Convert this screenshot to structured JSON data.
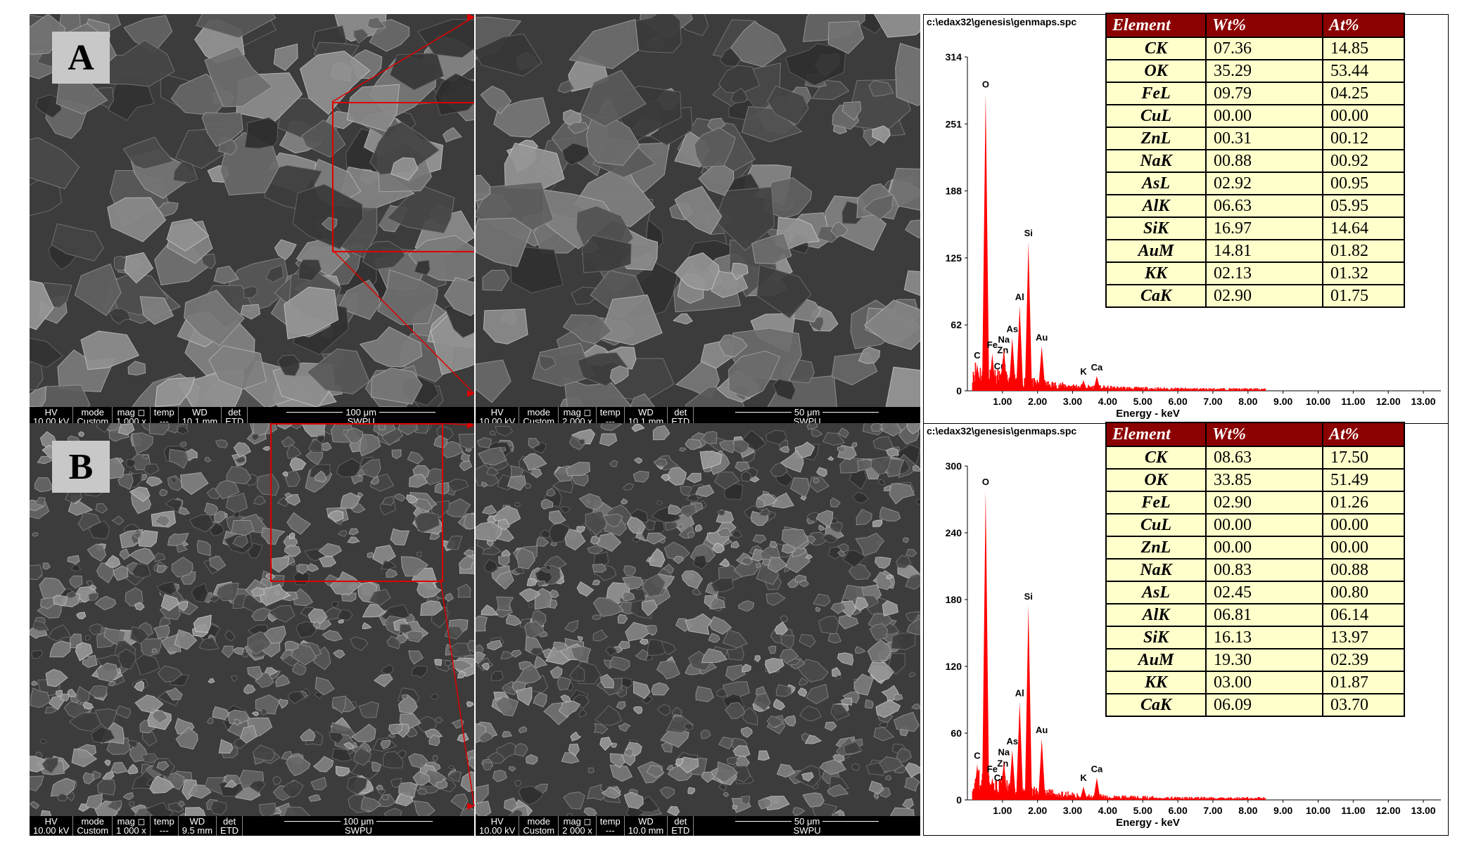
{
  "panels": [
    {
      "letter": "A",
      "sem_left": {
        "hv": "HV",
        "hv_val": "10.00 kV",
        "mode": "mode",
        "mode_val": "Custom",
        "mag": "mag ◻",
        "mag_val": "1 000 x",
        "temp": "temp",
        "temp_val": "---",
        "wd": "WD",
        "wd_val": "10.1 mm",
        "det": "det",
        "det_val": "ETD",
        "scale": "100 μm",
        "org": "SWPU"
      },
      "sem_right": {
        "hv": "HV",
        "hv_val": "10.00 kV",
        "mode": "mode",
        "mode_val": "Custom",
        "mag": "mag ◻",
        "mag_val": "2 000 x",
        "temp": "temp",
        "temp_val": "---",
        "wd": "WD",
        "wd_val": "10.1 mm",
        "det": "det",
        "det_val": "ETD",
        "scale": "50 μm",
        "org": "SWPU"
      },
      "path": "c:\\edax32\\genesis\\genmaps.spc",
      "table": {
        "headers": [
          "Element",
          "Wt%",
          "At%"
        ],
        "rows": [
          [
            "CK",
            "07.36",
            "14.85"
          ],
          [
            "OK",
            "35.29",
            "53.44"
          ],
          [
            "FeL",
            "09.79",
            "04.25"
          ],
          [
            "CuL",
            "00.00",
            "00.00"
          ],
          [
            "ZnL",
            "00.31",
            "00.12"
          ],
          [
            "NaK",
            "00.88",
            "00.92"
          ],
          [
            "AsL",
            "02.92",
            "00.95"
          ],
          [
            "AlK",
            "06.63",
            "05.95"
          ],
          [
            "SiK",
            "16.97",
            "14.64"
          ],
          [
            "AuM",
            "14.81",
            "01.82"
          ],
          [
            "KK",
            "02.13",
            "01.32"
          ],
          [
            "CaK",
            "02.90",
            "01.75"
          ]
        ]
      }
    },
    {
      "letter": "B",
      "sem_left": {
        "hv": "HV",
        "hv_val": "10.00 kV",
        "mode": "mode",
        "mode_val": "Custom",
        "mag": "mag ◻",
        "mag_val": "1 000 x",
        "temp": "temp",
        "temp_val": "---",
        "wd": "WD",
        "wd_val": "9.5 mm",
        "det": "det",
        "det_val": "ETD",
        "scale": "100 μm",
        "org": "SWPU"
      },
      "sem_right": {
        "hv": "HV",
        "hv_val": "10.00 kV",
        "mode": "mode",
        "mode_val": "Custom",
        "mag": "mag ◻",
        "mag_val": "2 000 x",
        "temp": "temp",
        "temp_val": "---",
        "wd": "WD",
        "wd_val": "10.0 mm",
        "det": "det",
        "det_val": "ETD",
        "scale": "50 μm",
        "org": "SWPU"
      },
      "path": "c:\\edax32\\genesis\\genmaps.spc",
      "table": {
        "headers": [
          "Element",
          "Wt%",
          "At%"
        ],
        "rows": [
          [
            "CK",
            "08.63",
            "17.50"
          ],
          [
            "OK",
            "33.85",
            "51.49"
          ],
          [
            "FeL",
            "02.90",
            "01.26"
          ],
          [
            "CuL",
            "00.00",
            "00.00"
          ],
          [
            "ZnL",
            "00.00",
            "00.00"
          ],
          [
            "NaK",
            "00.83",
            "00.88"
          ],
          [
            "AsL",
            "02.45",
            "00.80"
          ],
          [
            "AlK",
            "06.81",
            "06.14"
          ],
          [
            "SiK",
            "16.13",
            "13.97"
          ],
          [
            "AuM",
            "19.30",
            "02.39"
          ],
          [
            "KK",
            "03.00",
            "01.87"
          ],
          [
            "CaK",
            "06.09",
            "03.70"
          ]
        ]
      }
    }
  ],
  "chart_data": [
    {
      "type": "line",
      "xlabel": "Energy - keV",
      "xlim": [
        0,
        13.5
      ],
      "x_ticks": [
        "1.00",
        "2.00",
        "3.00",
        "4.00",
        "5.00",
        "6.00",
        "7.00",
        "8.00",
        "9.00",
        "10.00",
        "11.00",
        "12.00",
        "13.00"
      ],
      "ylim": [
        0,
        314
      ],
      "y_ticks": [
        "314",
        "251",
        "188",
        "125",
        "62",
        "0"
      ],
      "peaks": [
        {
          "name": "C",
          "x": 0.28,
          "y": 25
        },
        {
          "name": "O",
          "x": 0.52,
          "y": 280
        },
        {
          "name": "Fe",
          "x": 0.71,
          "y": 35
        },
        {
          "name": "Cu",
          "x": 0.93,
          "y": 15
        },
        {
          "name": "Zn",
          "x": 1.01,
          "y": 30
        },
        {
          "name": "Na",
          "x": 1.04,
          "y": 40
        },
        {
          "name": "As",
          "x": 1.28,
          "y": 50
        },
        {
          "name": "Al",
          "x": 1.49,
          "y": 80
        },
        {
          "name": "Si",
          "x": 1.74,
          "y": 140
        },
        {
          "name": "Au",
          "x": 2.12,
          "y": 42
        },
        {
          "name": "K",
          "x": 3.31,
          "y": 10
        },
        {
          "name": "Ca",
          "x": 3.69,
          "y": 14
        }
      ]
    },
    {
      "type": "line",
      "xlabel": "Energy - keV",
      "xlim": [
        0,
        13.5
      ],
      "x_ticks": [
        "1.00",
        "2.00",
        "3.00",
        "4.00",
        "5.00",
        "6.00",
        "7.00",
        "8.00",
        "9.00",
        "10.00",
        "11.00",
        "12.00",
        "13.00"
      ],
      "ylim": [
        0,
        300
      ],
      "y_ticks": [
        "300",
        "240",
        "180",
        "120",
        "60",
        "0"
      ],
      "peaks": [
        {
          "name": "C",
          "x": 0.28,
          "y": 32
        },
        {
          "name": "O",
          "x": 0.52,
          "y": 278
        },
        {
          "name": "Fe",
          "x": 0.71,
          "y": 20
        },
        {
          "name": "Cu",
          "x": 0.93,
          "y": 12
        },
        {
          "name": "Zn",
          "x": 1.01,
          "y": 25
        },
        {
          "name": "Na",
          "x": 1.04,
          "y": 35
        },
        {
          "name": "As",
          "x": 1.28,
          "y": 45
        },
        {
          "name": "Al",
          "x": 1.49,
          "y": 88
        },
        {
          "name": "Si",
          "x": 1.74,
          "y": 175
        },
        {
          "name": "Au",
          "x": 2.12,
          "y": 55
        },
        {
          "name": "K",
          "x": 3.31,
          "y": 12
        },
        {
          "name": "Ca",
          "x": 3.69,
          "y": 20
        }
      ]
    }
  ],
  "colors": {
    "peak": "#ff0000",
    "header_bg": "#8b0000",
    "cell_bg": "#ffffcc",
    "zoom_box": "#e00000"
  }
}
